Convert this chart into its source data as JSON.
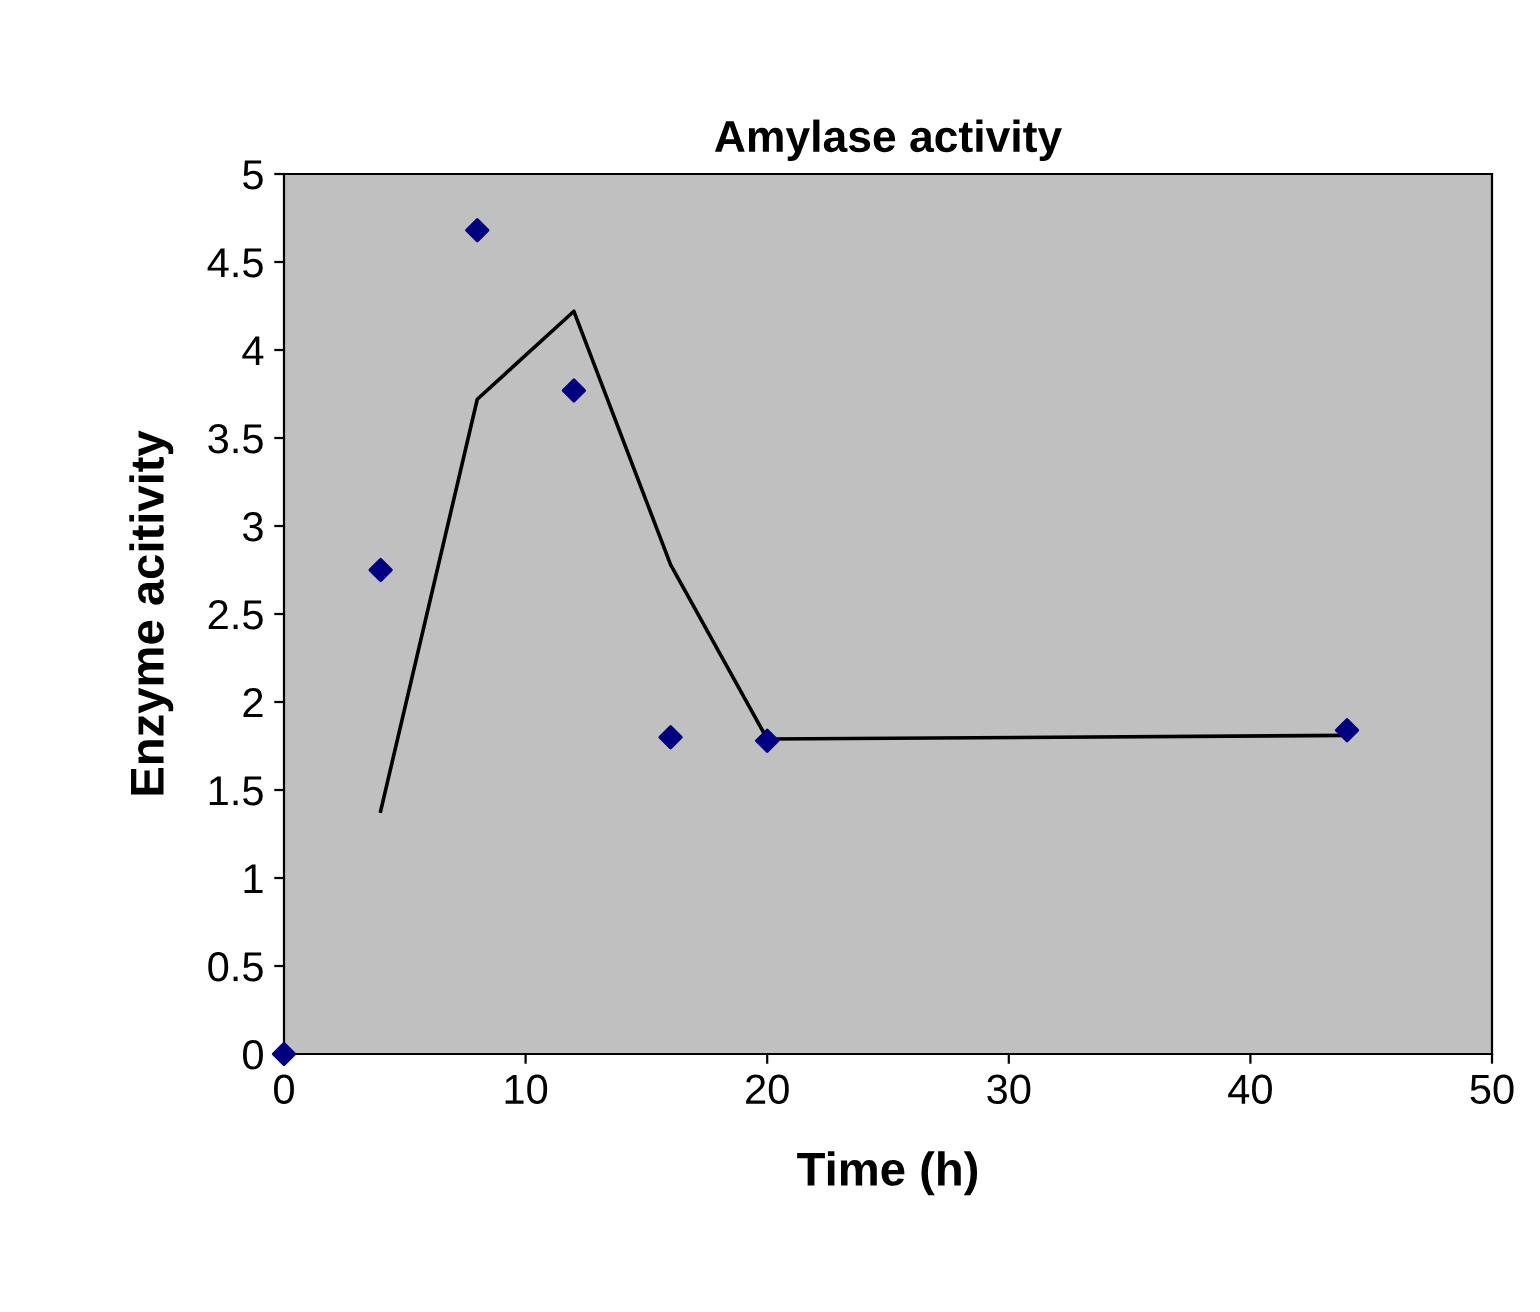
{
  "chart_data": {
    "type": "scatter",
    "title": "Amylase activity",
    "xlabel": "Time (h)",
    "ylabel": "Enzyme acitivity",
    "series": [
      {
        "color": "#000080",
        "marker": "diamond",
        "x": [
          0,
          4,
          8,
          12,
          16,
          20,
          44
        ],
        "values": [
          0,
          2.75,
          4.68,
          3.77,
          1.8,
          1.78,
          1.84
        ]
      },
      {
        "type": "line",
        "color": "#000000",
        "marker": "none",
        "line_style": "solid",
        "x": [
          4,
          8,
          12,
          16,
          20,
          44
        ],
        "values": [
          1.38,
          3.72,
          4.22,
          2.78,
          1.79,
          1.81
        ]
      }
    ],
    "xlim": [
      0,
      50
    ],
    "xticks": [
      0,
      10,
      20,
      30,
      40,
      50
    ],
    "ylim": [
      0,
      5
    ],
    "yticks": [
      0,
      0.5,
      1,
      1.5,
      2,
      2.5,
      3,
      3.5,
      4,
      4.5,
      5
    ],
    "grid": false,
    "legend": false
  }
}
